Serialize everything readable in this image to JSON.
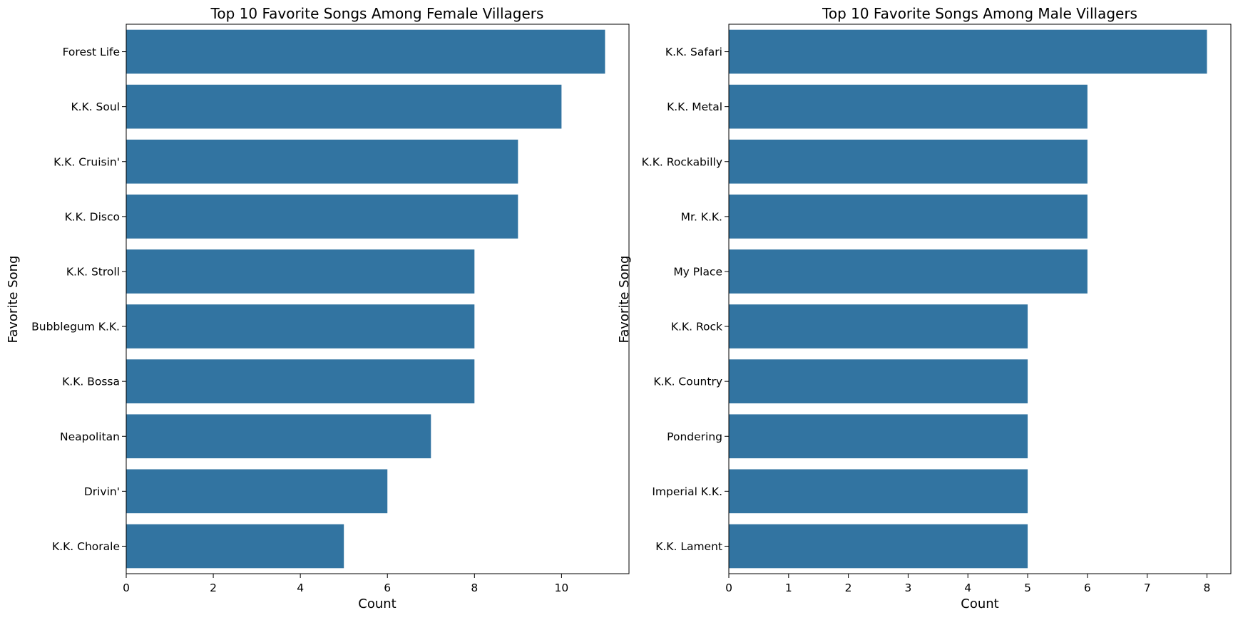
{
  "chart_data": [
    {
      "type": "bar",
      "orientation": "horizontal",
      "title": "Top 10 Favorite Songs Among Female Villagers",
      "xlabel": "Count",
      "ylabel": "Favorite Song",
      "categories": [
        "Forest Life",
        "K.K. Soul",
        "K.K. Cruisin'",
        "K.K. Disco",
        "K.K. Stroll",
        "Bubblegum K.K.",
        "K.K. Bossa",
        "Neapolitan",
        "Drivin'",
        "K.K. Chorale"
      ],
      "values": [
        11,
        10,
        9,
        9,
        8,
        8,
        8,
        7,
        6,
        5
      ],
      "xlim": [
        0,
        11.55
      ],
      "xticks": [
        0,
        2,
        4,
        6,
        8,
        10
      ],
      "bar_color": "#3274a1",
      "grid": false
    },
    {
      "type": "bar",
      "orientation": "horizontal",
      "title": "Top 10 Favorite Songs Among Male Villagers",
      "xlabel": "Count",
      "ylabel": "Favorite Song",
      "categories": [
        "K.K. Safari",
        "K.K. Metal",
        "K.K. Rockabilly",
        "Mr. K.K.",
        "My Place",
        "K.K. Rock",
        "K.K. Country",
        "Pondering",
        "Imperial K.K.",
        "K.K. Lament"
      ],
      "values": [
        8,
        6,
        6,
        6,
        6,
        5,
        5,
        5,
        5,
        5
      ],
      "xlim": [
        0,
        8.4
      ],
      "xticks": [
        0,
        1,
        2,
        3,
        4,
        5,
        6,
        7,
        8
      ],
      "bar_color": "#3274a1",
      "grid": false
    }
  ]
}
